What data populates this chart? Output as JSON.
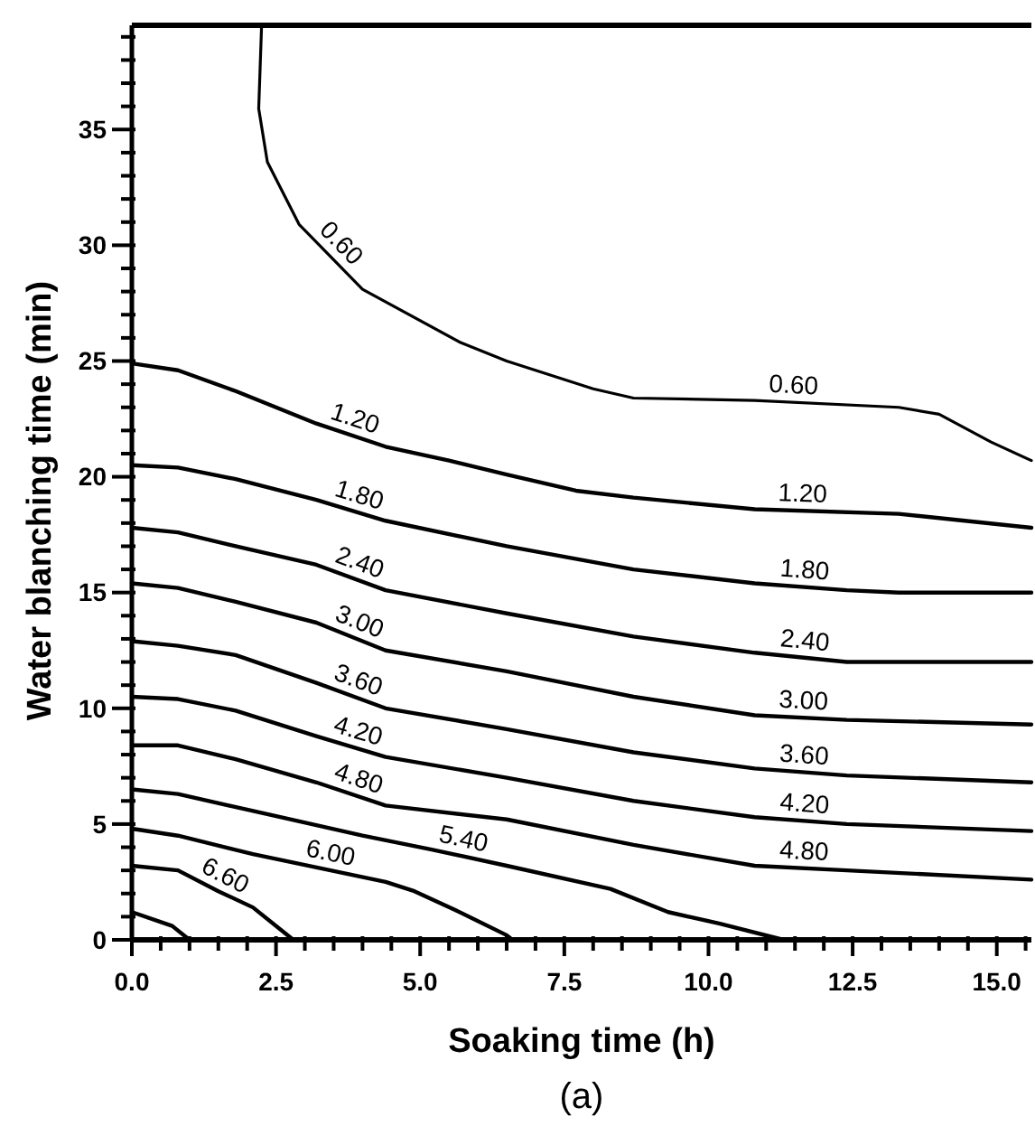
{
  "chart_data": {
    "type": "line",
    "xlabel": "Soaking time (h)",
    "ylabel": "Water blanching time (min)",
    "annotations": [
      "(a)"
    ],
    "xlim": [
      0,
      15.6
    ],
    "ylim": [
      0,
      39.5
    ],
    "xticks": [
      {
        "value": 0,
        "label": "0.0"
      },
      {
        "value": 0.5,
        "label": null
      },
      {
        "value": 1,
        "label": null
      },
      {
        "value": 1.5,
        "label": null
      },
      {
        "value": 2,
        "label": null
      },
      {
        "value": 2.5,
        "label": "2.5"
      },
      {
        "value": 3,
        "label": null
      },
      {
        "value": 3.5,
        "label": null
      },
      {
        "value": 4,
        "label": null
      },
      {
        "value": 4.5,
        "label": null
      },
      {
        "value": 5,
        "label": "5.0"
      },
      {
        "value": 5.5,
        "label": null
      },
      {
        "value": 6,
        "label": null
      },
      {
        "value": 6.5,
        "label": null
      },
      {
        "value": 7,
        "label": null
      },
      {
        "value": 7.5,
        "label": "7.5"
      },
      {
        "value": 8,
        "label": null
      },
      {
        "value": 8.5,
        "label": null
      },
      {
        "value": 9,
        "label": null
      },
      {
        "value": 9.5,
        "label": null
      },
      {
        "value": 10,
        "label": "10.0"
      },
      {
        "value": 10.5,
        "label": null
      },
      {
        "value": 11,
        "label": null
      },
      {
        "value": 11.5,
        "label": null
      },
      {
        "value": 12,
        "label": null
      },
      {
        "value": 12.5,
        "label": "12.5"
      },
      {
        "value": 13,
        "label": null
      },
      {
        "value": 13.5,
        "label": null
      },
      {
        "value": 14,
        "label": null
      },
      {
        "value": 14.5,
        "label": null
      },
      {
        "value": 15,
        "label": "15.0"
      },
      {
        "value": 15.5,
        "label": null
      }
    ],
    "yticks": [
      0,
      {
        "value": 1,
        "label": null
      },
      {
        "value": 2,
        "label": null
      },
      {
        "value": 3,
        "label": null
      },
      {
        "value": 4,
        "label": null
      },
      5,
      {
        "value": 6,
        "label": null
      },
      {
        "value": 7,
        "label": null
      },
      {
        "value": 8,
        "label": null
      },
      {
        "value": 9,
        "label": null
      },
      10,
      {
        "value": 11,
        "label": null
      },
      {
        "value": 12,
        "label": null
      },
      {
        "value": 13,
        "label": null
      },
      {
        "value": 14,
        "label": null
      },
      15,
      {
        "value": 16,
        "label": null
      },
      {
        "value": 17,
        "label": null
      },
      {
        "value": 18,
        "label": null
      },
      {
        "value": 19,
        "label": null
      },
      20,
      {
        "value": 21,
        "label": null
      },
      {
        "value": 22,
        "label": null
      },
      {
        "value": 23,
        "label": null
      },
      {
        "value": 24,
        "label": null
      },
      25,
      {
        "value": 26,
        "label": null
      },
      {
        "value": 27,
        "label": null
      },
      {
        "value": 28,
        "label": null
      },
      {
        "value": 29,
        "label": null
      },
      30,
      {
        "value": 31,
        "label": null
      },
      {
        "value": 32,
        "label": null
      },
      {
        "value": 33,
        "label": null
      },
      {
        "value": 34,
        "label": null
      },
      35,
      {
        "value": 36,
        "label": null
      },
      {
        "value": 37,
        "label": null
      },
      {
        "value": 38,
        "label": null
      },
      {
        "value": 39,
        "label": null
      }
    ],
    "grid": false,
    "marker": "none",
    "line_style": "solid",
    "series": [
      {
        "name": "0.60",
        "color": "#000000",
        "x": [
          2.25,
          2.2,
          2.35,
          2.9,
          4.0,
          5.7,
          6.5,
          8.0,
          8.7,
          10.8,
          13.3,
          14.0,
          14.9,
          15.6
        ],
        "values": [
          39.5,
          35.9,
          33.6,
          30.9,
          28.1,
          25.8,
          25.0,
          23.8,
          23.4,
          23.3,
          23.0,
          22.7,
          21.5,
          20.7
        ]
      },
      {
        "name": "1.20",
        "color": "#000000",
        "x": [
          0,
          0.8,
          1.8,
          3.2,
          4.4,
          5.5,
          6.5,
          7.7,
          8.7,
          10.8,
          13.3,
          15.6
        ],
        "values": [
          24.9,
          24.6,
          23.7,
          22.3,
          21.3,
          20.7,
          20.1,
          19.4,
          19.1,
          18.6,
          18.4,
          17.8
        ]
      },
      {
        "name": "1.80",
        "color": "#000000",
        "x": [
          0,
          0.8,
          1.8,
          3.2,
          4.4,
          6.5,
          8.7,
          10.8,
          12.4,
          13.3,
          15.6
        ],
        "values": [
          20.5,
          20.4,
          19.9,
          19.0,
          18.1,
          17.0,
          16.0,
          15.4,
          15.1,
          15.0,
          15.0
        ]
      },
      {
        "name": "2.40",
        "color": "#000000",
        "x": [
          0,
          0.8,
          1.8,
          3.2,
          4.4,
          6.5,
          8.7,
          10.8,
          12.4,
          15.6
        ],
        "values": [
          17.8,
          17.6,
          17.0,
          16.2,
          15.1,
          14.1,
          13.1,
          12.4,
          12.0,
          12.0
        ]
      },
      {
        "name": "3.00",
        "color": "#000000",
        "x": [
          0,
          0.8,
          1.8,
          3.2,
          4.4,
          6.5,
          8.7,
          10.8,
          12.4,
          15.6
        ],
        "values": [
          15.4,
          15.2,
          14.6,
          13.7,
          12.5,
          11.6,
          10.5,
          9.7,
          9.5,
          9.3
        ]
      },
      {
        "name": "3.60",
        "color": "#000000",
        "x": [
          0,
          0.8,
          1.8,
          3.2,
          4.4,
          6.5,
          8.7,
          10.8,
          12.4,
          15.6
        ],
        "values": [
          12.9,
          12.7,
          12.3,
          11.1,
          10.0,
          9.1,
          8.1,
          7.4,
          7.1,
          6.8
        ]
      },
      {
        "name": "4.20",
        "color": "#000000",
        "x": [
          0,
          0.8,
          1.8,
          3.2,
          4.4,
          6.5,
          8.7,
          10.8,
          12.4,
          15.6
        ],
        "values": [
          10.5,
          10.4,
          9.9,
          8.8,
          7.9,
          7.0,
          6.0,
          5.3,
          5.0,
          4.7
        ]
      },
      {
        "name": "4.80",
        "color": "#000000",
        "x": [
          0,
          0.8,
          1.8,
          3.2,
          4.4,
          6.5,
          8.7,
          10.8,
          12.4,
          15.6
        ],
        "values": [
          8.4,
          8.4,
          7.8,
          6.8,
          5.8,
          5.2,
          4.1,
          3.2,
          3.0,
          2.6
        ]
      },
      {
        "name": "5.40",
        "color": "#000000",
        "x": [
          0,
          0.8,
          2.4,
          4.0,
          5.2,
          6.5,
          8.3,
          9.3,
          10.2,
          11.3
        ],
        "values": [
          6.5,
          6.3,
          5.4,
          4.5,
          3.9,
          3.2,
          2.2,
          1.2,
          0.7,
          0
        ]
      },
      {
        "name": "6.00",
        "color": "#000000",
        "x": [
          0,
          0.8,
          2.1,
          4.4,
          4.9,
          5.6,
          6.5,
          6.6
        ],
        "values": [
          4.8,
          4.5,
          3.7,
          2.5,
          2.1,
          1.3,
          0.2,
          0
        ]
      },
      {
        "name": "6.60",
        "color": "#000000",
        "x": [
          0,
          0.8,
          1.5,
          2.1,
          2.8
        ],
        "values": [
          3.2,
          3.0,
          2.1,
          1.4,
          0
        ]
      },
      {
        "color": "#000000",
        "x": [
          0,
          0.7,
          1.0
        ],
        "values": [
          1.2,
          0.6,
          0
        ]
      }
    ]
  }
}
